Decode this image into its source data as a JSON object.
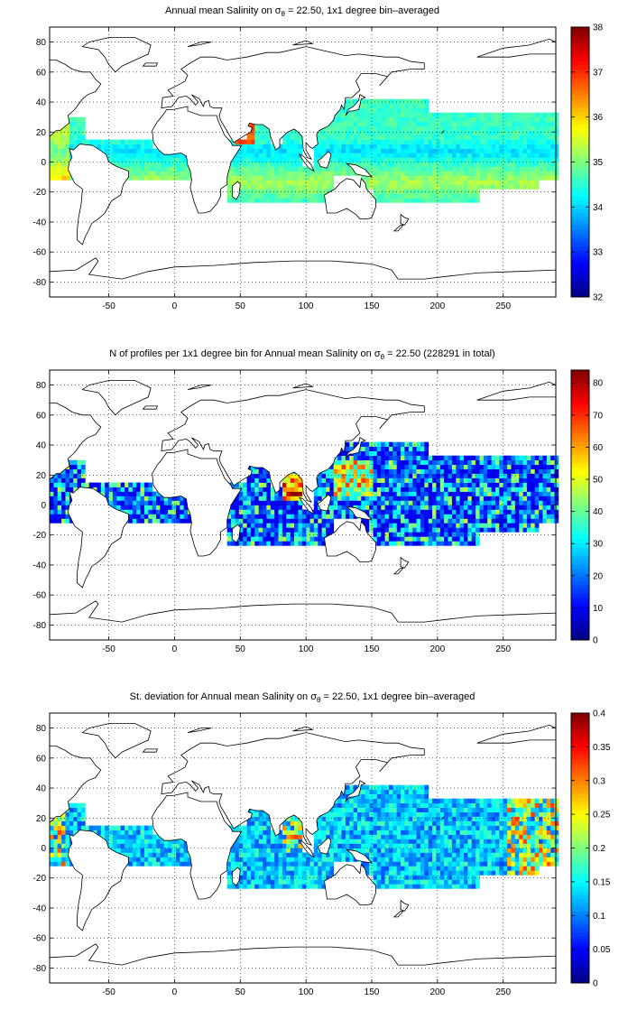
{
  "panels": [
    {
      "title_prefix": "Annual mean Salinity on",
      "title_symbol": "σ",
      "title_subscript": "θ",
      "title_suffix": " = 22.50, 1x1 degree bin–averaged",
      "colorbar": {
        "min": 32,
        "max": 38,
        "ticks": [
          "32",
          "33",
          "34",
          "35",
          "36",
          "37",
          "38"
        ]
      },
      "field": "salinity"
    },
    {
      "title_prefix": "N of profiles per 1x1 degree bin for Annual mean Salinity on",
      "title_symbol": "σ",
      "title_subscript": "θ",
      "title_suffix": " = 22.50 (228291 in total)",
      "colorbar": {
        "min": 0,
        "max": 84,
        "ticks": [
          "0",
          "10",
          "20",
          "30",
          "40",
          "50",
          "60",
          "70",
          "80"
        ]
      },
      "field": "count"
    },
    {
      "title_prefix": "St. deviation for Annual mean Salinity on",
      "title_symbol": "σ",
      "title_subscript": "θ",
      "title_suffix": " = 22.50, 1x1 degree bin–averaged",
      "colorbar": {
        "min": 0,
        "max": 0.4,
        "ticks": [
          "0",
          "0.05",
          "0.1",
          "0.15",
          "0.2",
          "0.25",
          "0.3",
          "0.35",
          "0.4"
        ]
      },
      "field": "stdev"
    }
  ],
  "map": {
    "x_ticks": [
      "-50",
      "0",
      "50",
      "100",
      "150",
      "200",
      "250"
    ],
    "y_ticks": [
      "80",
      "60",
      "40",
      "20",
      "0",
      "-20",
      "-40",
      "-60",
      "-80"
    ],
    "x_range": [
      -95,
      290
    ],
    "y_range": [
      -90,
      90
    ],
    "grid": "dotted"
  },
  "colors": {
    "land_outline": "#000000",
    "background": "#ffffff",
    "colormap": "jet"
  }
}
